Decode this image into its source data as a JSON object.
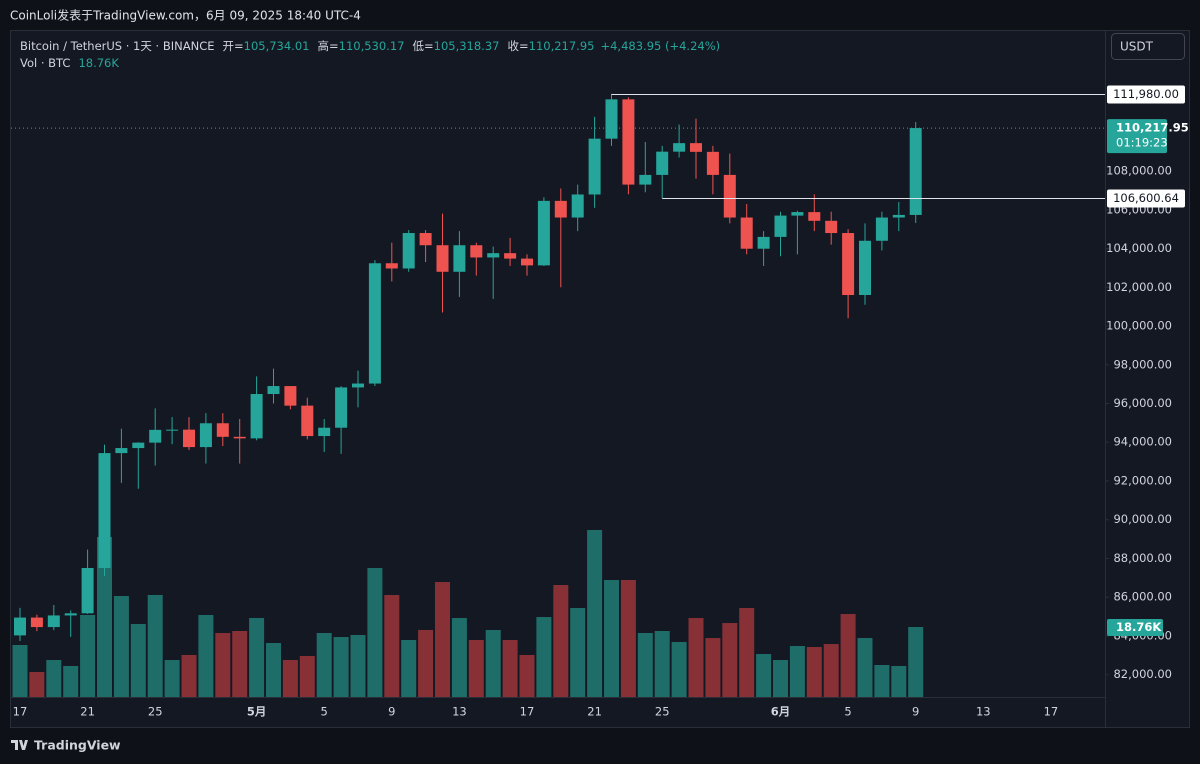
{
  "header": "CoinLoli发表于TradingView.com，6月 09, 2025 18:40 UTC-4",
  "brand": "TradingView",
  "chart_data": {
    "type": "candlestick",
    "symbol": "Bitcoin / TetherUS · 1天 · BINANCE",
    "ohlc_legend": [
      {
        "label": "开=",
        "value": "105,734.01"
      },
      {
        "label": "高=",
        "value": "110,530.17"
      },
      {
        "label": "低=",
        "value": "105,318.37"
      },
      {
        "label": "收=",
        "value": "110,217.95"
      }
    ],
    "change": "+4,483.95 (+4.24%)",
    "volume_title": "Vol · BTC",
    "volume_label": "18.76K",
    "currency": "USDT",
    "categories": [
      "17",
      null,
      null,
      null,
      "21",
      null,
      null,
      null,
      "25",
      null,
      null,
      null,
      null,
      null,
      "5月",
      null,
      null,
      null,
      "5",
      null,
      null,
      null,
      "9",
      null,
      null,
      null,
      "13",
      null,
      null,
      null,
      "17",
      null,
      null,
      null,
      "21",
      null,
      null,
      null,
      "25",
      null,
      null,
      null,
      null,
      null,
      null,
      "6月",
      null,
      null,
      null,
      "5",
      null,
      null,
      null,
      "9"
    ],
    "future_categories": [
      "13",
      "17"
    ],
    "open": [
      84030,
      84950,
      84460,
      85060,
      85170,
      87510,
      93440,
      93700,
      93980,
      94640,
      94650,
      93750,
      94980,
      94280,
      94200,
      96490,
      96900,
      95890,
      94320,
      94750,
      96830,
      97030,
      103240,
      102970,
      104800,
      104170,
      102800,
      104170,
      103540,
      103760,
      103480,
      103130,
      106460,
      105600,
      106790,
      109670,
      111700,
      107300,
      107800,
      109000,
      109440,
      108990,
      107800,
      105600,
      103990,
      104600,
      105700,
      105880,
      105430,
      104800,
      101600,
      104400,
      105600,
      105734.01
    ],
    "high": [
      85450,
      85100,
      85600,
      85320,
      88460,
      93880,
      94700,
      94000,
      95750,
      95300,
      95300,
      95500,
      95500,
      95200,
      97400,
      97800,
      96900,
      96300,
      95200,
      96900,
      97700,
      103400,
      104300,
      104950,
      104950,
      105800,
      104900,
      104300,
      104100,
      104550,
      103700,
      106650,
      107100,
      107300,
      110800,
      111980,
      111800,
      109500,
      109300,
      110400,
      110700,
      109300,
      108900,
      106300,
      104900,
      105900,
      105950,
      106800,
      105900,
      105000,
      105300,
      105900,
      106400,
      110530.17
    ],
    "low": [
      83740,
      84250,
      84300,
      83950,
      85140,
      87100,
      91900,
      91600,
      92800,
      93900,
      93600,
      92900,
      93800,
      92900,
      94100,
      96000,
      95700,
      94150,
      93500,
      93400,
      95800,
      96900,
      102300,
      102800,
      103300,
      100700,
      101500,
      102600,
      101400,
      103100,
      102600,
      103100,
      102000,
      104900,
      106100,
      109300,
      106800,
      106900,
      106600,
      108700,
      107600,
      106800,
      105300,
      103700,
      103100,
      103600,
      103700,
      104900,
      104200,
      100400,
      101100,
      103900,
      104900,
      105318.37
    ],
    "close": [
      84950,
      84460,
      85060,
      85170,
      87510,
      93440,
      93700,
      93980,
      94640,
      94650,
      93750,
      94980,
      94280,
      94200,
      96490,
      96900,
      95890,
      94320,
      94750,
      96830,
      97030,
      103240,
      102970,
      104800,
      104170,
      102800,
      104170,
      103540,
      103760,
      103480,
      103130,
      106460,
      105600,
      106790,
      109670,
      111700,
      107300,
      107800,
      109000,
      109440,
      108990,
      107800,
      105600,
      103990,
      104600,
      105700,
      105880,
      105430,
      104800,
      101600,
      104400,
      105600,
      105734.01,
      110217.95
    ],
    "volume": [
      13940,
      6700,
      9920,
      8310,
      21980,
      42880,
      27070,
      19560,
      27340,
      9920,
      11260,
      21980,
      17150,
      17690,
      21170,
      14470,
      9920,
      10990,
      17150,
      16080,
      16620,
      34570,
      27340,
      15280,
      17960,
      30820,
      21170,
      15280,
      17960,
      15280,
      11260,
      21440,
      30020,
      23850,
      44760,
      31360,
      31360,
      17150,
      17690,
      14740,
      21170,
      15810,
      19830,
      23850,
      11520,
      9920,
      13670,
      13400,
      14200,
      22240,
      15810,
      8580,
      8310,
      18760
    ],
    "up_color": "#26a69a",
    "down_color": "#ef5350",
    "volume_up_color": "#1f6d69",
    "volume_down_color": "#873036",
    "ylim": [
      80850,
      115280
    ],
    "yticks": [
      {
        "value": 82000,
        "label": "82,000.00"
      },
      {
        "value": 84000,
        "label": "84,000.00"
      },
      {
        "value": 86000,
        "label": "86,000.00"
      },
      {
        "value": 88000,
        "label": "88,000.00"
      },
      {
        "value": 90000,
        "label": "90,000.00"
      },
      {
        "value": 92000,
        "label": "92,000.00"
      },
      {
        "value": 94000,
        "label": "94,000.00"
      },
      {
        "value": 96000,
        "label": "96,000.00"
      },
      {
        "value": 98000,
        "label": "98,000.00"
      },
      {
        "value": 100000,
        "label": "100,000.00"
      },
      {
        "value": 102000,
        "label": "102,000.00"
      },
      {
        "value": 104000,
        "label": "104,000.00"
      },
      {
        "value": 106000,
        "label": "106,000.00"
      },
      {
        "value": 108000,
        "label": "108,000.00"
      }
    ],
    "levels": [
      {
        "value": 111980,
        "label": "111,980.00"
      },
      {
        "value": 106600.64,
        "label": "106,600.64"
      }
    ],
    "last_price": {
      "value": 110217.95,
      "label": "110,217.95"
    },
    "countdown": "01:19:23"
  }
}
